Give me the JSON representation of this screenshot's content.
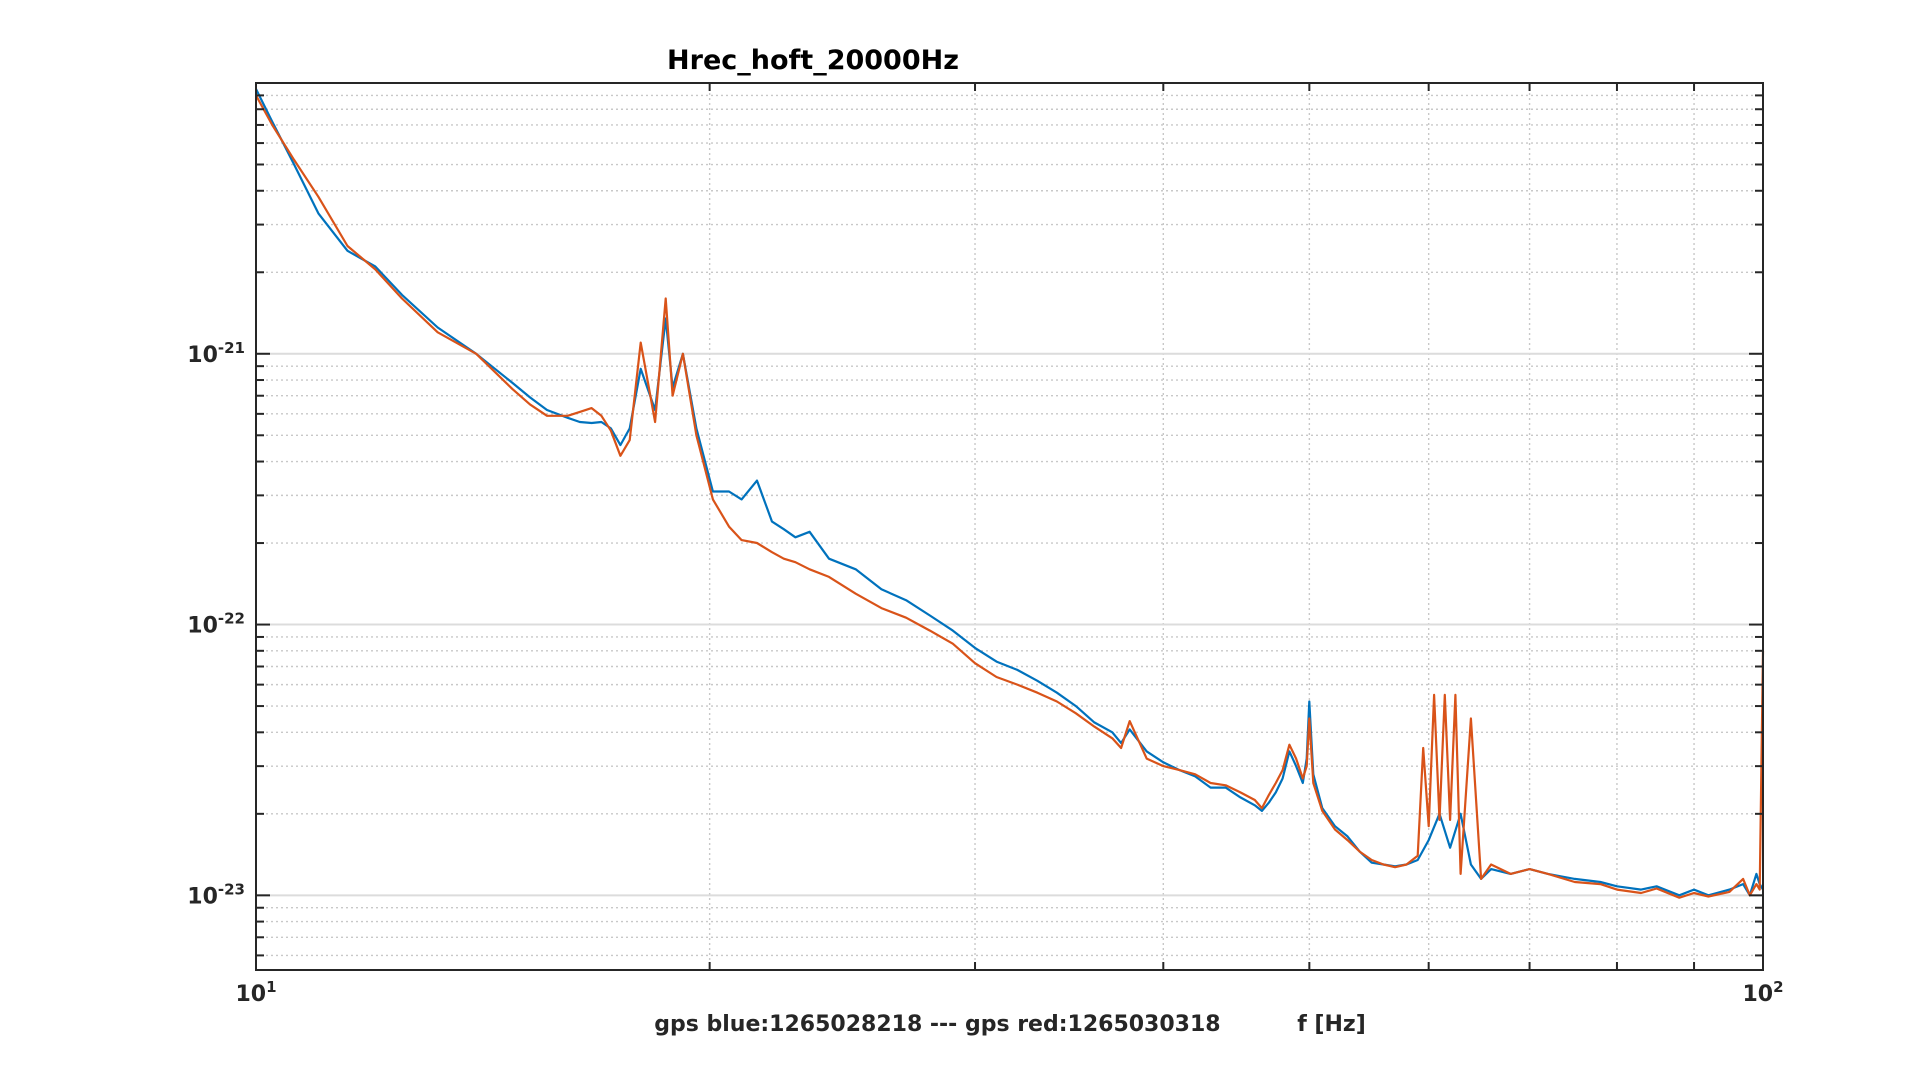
{
  "chart_data": {
    "type": "line",
    "title": "Hrec_hoft_20000Hz",
    "xlabel": "gps blue:1265028218 --- gps red:1265030318          f [Hz]",
    "ylabel": "",
    "xscale": "log",
    "yscale": "log",
    "xlim": [
      10,
      100
    ],
    "ylim": [
      5.3e-24,
      1e-20
    ],
    "grid": true,
    "x_ticks": [
      {
        "value": 10,
        "base": "10",
        "exp": "1"
      },
      {
        "value": 100,
        "base": "10",
        "exp": "2"
      }
    ],
    "y_ticks": [
      {
        "value": 1e-21,
        "base": "10",
        "exp": "-21"
      },
      {
        "value": 1e-22,
        "base": "10",
        "exp": "-22"
      },
      {
        "value": 1e-23,
        "base": "10",
        "exp": "-23"
      }
    ],
    "series": [
      {
        "color": "#0072BD",
        "x": [
          10,
          10.25,
          10.6,
          11,
          11.5,
          12,
          12.5,
          13.2,
          14,
          14.8,
          15.2,
          15.6,
          16.1,
          16.4,
          16.7,
          16.95,
          17.2,
          17.45,
          17.7,
          18.0,
          18.4,
          18.7,
          18.9,
          19.2,
          19.6,
          20.1,
          20.6,
          21,
          21.5,
          22,
          22.4,
          22.8,
          23.3,
          24,
          25,
          26,
          27,
          28,
          29,
          30,
          31,
          32,
          33,
          34,
          35,
          36,
          37,
          37.5,
          38,
          39,
          40,
          41,
          42,
          43,
          44,
          45,
          46,
          46.5,
          47,
          47.5,
          48,
          48.5,
          49,
          49.5,
          49.8,
          50,
          50.3,
          51,
          52,
          53,
          54,
          55,
          56,
          57,
          58,
          59,
          60,
          61,
          62,
          63,
          64,
          65,
          66,
          68,
          70,
          72,
          75,
          78,
          80,
          83,
          85,
          88,
          90,
          92,
          95,
          97,
          98,
          99,
          99.5,
          100
        ],
        "y": [
          9.5e-21,
          7.2e-21,
          5e-21,
          3.3e-21,
          2.4e-21,
          2.1e-21,
          1.65e-21,
          1.25e-21,
          1e-21,
          7.8e-22,
          6.9e-22,
          6.2e-22,
          5.8e-22,
          5.6e-22,
          5.55e-22,
          5.6e-22,
          5.3e-22,
          4.6e-22,
          5.3e-22,
          8.8e-22,
          6.2e-22,
          1.35e-21,
          7.5e-22,
          1e-21,
          5.3e-22,
          3.1e-22,
          3.1e-22,
          2.9e-22,
          3.4e-22,
          2.4e-22,
          2.25e-22,
          2.1e-22,
          2.2e-22,
          1.75e-22,
          1.6e-22,
          1.35e-22,
          1.23e-22,
          1.08e-22,
          9.5e-23,
          8.2e-23,
          7.3e-23,
          6.8e-23,
          6.2e-23,
          5.6e-23,
          5e-23,
          4.35e-23,
          4e-23,
          3.65e-23,
          4.1e-23,
          3.4e-23,
          3.1e-23,
          2.9e-23,
          2.75e-23,
          2.5e-23,
          2.5e-23,
          2.3e-23,
          2.15e-23,
          2.05e-23,
          2.2e-23,
          2.4e-23,
          2.7e-23,
          3.4e-23,
          3e-23,
          2.6e-23,
          3.2e-23,
          5.2e-23,
          2.8e-23,
          2.1e-23,
          1.8e-23,
          1.65e-23,
          1.45e-23,
          1.32e-23,
          1.3e-23,
          1.28e-23,
          1.3e-23,
          1.35e-23,
          1.6e-23,
          2e-23,
          1.5e-23,
          2e-23,
          1.3e-23,
          1.15e-23,
          1.25e-23,
          1.2e-23,
          1.25e-23,
          1.2e-23,
          1.15e-23,
          1.12e-23,
          1.08e-23,
          1.05e-23,
          1.08e-23,
          1e-23,
          1.05e-23,
          1e-23,
          1.05e-23,
          1.1e-23,
          1e-23,
          1.2e-23,
          1.1e-23,
          1.05e-23
        ]
      },
      {
        "color": "#D95319",
        "x": [
          10,
          10.25,
          10.6,
          11,
          11.5,
          12,
          12.5,
          13.2,
          14,
          14.8,
          15.2,
          15.6,
          16.1,
          16.4,
          16.7,
          16.95,
          17.2,
          17.45,
          17.7,
          18.0,
          18.4,
          18.7,
          18.9,
          19.2,
          19.6,
          20.1,
          20.6,
          21,
          21.5,
          22,
          22.4,
          22.8,
          23.3,
          24,
          25,
          26,
          27,
          28,
          29,
          30,
          31,
          32,
          33,
          34,
          35,
          36,
          37,
          37.5,
          38,
          39,
          40,
          41,
          42,
          43,
          44,
          45,
          46,
          46.5,
          47,
          47.5,
          48,
          48.5,
          49,
          49.5,
          49.8,
          50,
          50.3,
          51,
          52,
          53,
          54,
          55,
          56,
          57,
          58,
          59,
          59.5,
          60,
          60.5,
          61,
          61.5,
          62,
          62.5,
          63,
          64,
          65,
          66,
          68,
          70,
          72,
          75,
          78,
          80,
          83,
          85,
          88,
          90,
          92,
          95,
          97,
          98,
          99,
          99.5,
          100
        ],
        "y": [
          9e-21,
          7e-21,
          5.2e-21,
          3.8e-21,
          2.5e-21,
          2.05e-21,
          1.6e-21,
          1.2e-21,
          1e-21,
          7.4e-22,
          6.5e-22,
          5.9e-22,
          5.9e-22,
          6.1e-22,
          6.3e-22,
          5.9e-22,
          5.2e-22,
          4.2e-22,
          4.8e-22,
          1.1e-21,
          5.6e-22,
          1.6e-21,
          7e-22,
          1e-21,
          5e-22,
          2.9e-22,
          2.3e-22,
          2.05e-22,
          2e-22,
          1.85e-22,
          1.75e-22,
          1.7e-22,
          1.6e-22,
          1.5e-22,
          1.3e-22,
          1.15e-22,
          1.06e-22,
          9.5e-23,
          8.5e-23,
          7.2e-23,
          6.4e-23,
          6e-23,
          5.6e-23,
          5.2e-23,
          4.7e-23,
          4.2e-23,
          3.8e-23,
          3.5e-23,
          4.4e-23,
          3.2e-23,
          3e-23,
          2.9e-23,
          2.8e-23,
          2.6e-23,
          2.55e-23,
          2.4e-23,
          2.25e-23,
          2.1e-23,
          2.35e-23,
          2.6e-23,
          2.9e-23,
          3.6e-23,
          3.2e-23,
          2.7e-23,
          3e-23,
          4.5e-23,
          2.6e-23,
          2.05e-23,
          1.75e-23,
          1.6e-23,
          1.45e-23,
          1.35e-23,
          1.3e-23,
          1.27e-23,
          1.3e-23,
          1.4e-23,
          3.5e-23,
          1.8e-23,
          5.5e-23,
          1.9e-23,
          5.5e-23,
          1.9e-23,
          5.5e-23,
          1.2e-23,
          4.5e-23,
          1.15e-23,
          1.3e-23,
          1.2e-23,
          1.25e-23,
          1.2e-23,
          1.12e-23,
          1.1e-23,
          1.05e-23,
          1.02e-23,
          1.06e-23,
          9.8e-24,
          1.02e-23,
          9.9e-24,
          1.03e-23,
          1.15e-23,
          1e-23,
          1.1e-23,
          1.05e-23,
          8e-23
        ]
      }
    ]
  }
}
